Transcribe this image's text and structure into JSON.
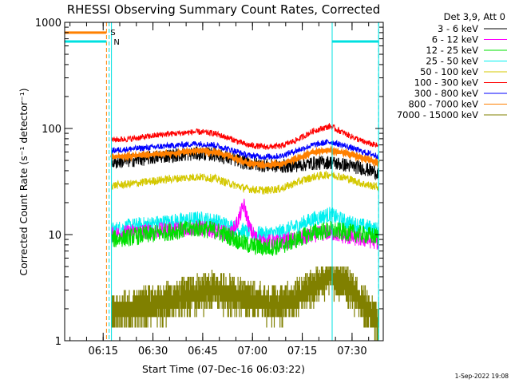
{
  "chart_data": {
    "type": "line",
    "title": "RHESSI Observing Summary Count Rates, Corrected",
    "ylabel": "Corrected Count Rate (s⁻¹ detector⁻¹)",
    "xlabel": "Start Time (07-Dec-16 06:03:22)",
    "yscale": "log",
    "ylim": [
      1,
      1000
    ],
    "xlim_minutes": [
      0,
      96
    ],
    "x_tick_labels": [
      "06:15",
      "06:30",
      "06:45",
      "07:00",
      "07:15",
      "07:30"
    ],
    "x_ticks_minutes": [
      11.6,
      26.6,
      41.6,
      56.6,
      71.6,
      86.6
    ],
    "y_tick_labels": [
      "1",
      "10",
      "100",
      "1000"
    ],
    "y_ticks": [
      1,
      10,
      100,
      1000
    ],
    "legend_title": "Det 3,9, Att 0",
    "legend_placement": "right, outside plot",
    "footer": "1-Sep-2022 19:08",
    "markers": {
      "s_label": "S",
      "n_label": "N",
      "s_color": "#ff8000",
      "n_color": "#00e0e0",
      "s_bar_y": 800,
      "n_bar_y": 660,
      "s_bar_x": [
        0,
        12.6
      ],
      "n_bar_x": [
        0,
        12.6
      ],
      "right_bar_x": [
        80.6,
        94.6
      ],
      "cyan_lines_x": [
        0,
        14.1,
        80.6,
        94.6
      ],
      "dashed_lines_x": [
        12.6,
        13.4,
        94.6
      ]
    },
    "data_start_minute": 14.1,
    "series": [
      {
        "name": "3 - 6 keV",
        "color": "#000000",
        "noise": 0.07,
        "x": [
          14.1,
          20,
          30,
          40,
          45,
          50,
          55,
          60,
          65,
          70,
          75,
          80,
          85,
          90,
          94.6
        ],
        "y": [
          48,
          50,
          55,
          58,
          57,
          52,
          47,
          45,
          44,
          45,
          47,
          48,
          45,
          42,
          38
        ]
      },
      {
        "name": "6 - 12 keV",
        "color": "#ff00ff",
        "noise": 0.08,
        "x": [
          14.1,
          20,
          30,
          40,
          45,
          50,
          52,
          54,
          56,
          58,
          60,
          65,
          70,
          75,
          80,
          85,
          90,
          94.6
        ],
        "y": [
          10,
          10.5,
          11,
          11.5,
          11,
          10,
          13,
          19,
          11,
          9,
          8.5,
          8.5,
          9,
          10,
          10.5,
          9.5,
          9,
          8.5
        ]
      },
      {
        "name": "12 - 25 keV",
        "color": "#00e000",
        "noise": 0.09,
        "x": [
          14.1,
          20,
          30,
          40,
          45,
          50,
          55,
          60,
          65,
          70,
          75,
          80,
          85,
          90,
          94.6
        ],
        "y": [
          9,
          9.5,
          10.5,
          11.5,
          11,
          9.5,
          8,
          7.5,
          7.8,
          9,
          10.5,
          11,
          10.5,
          10,
          9.5
        ]
      },
      {
        "name": "25 - 50 keV",
        "color": "#00f0f0",
        "noise": 0.08,
        "x": [
          14.1,
          20,
          30,
          40,
          45,
          50,
          55,
          60,
          65,
          70,
          75,
          80,
          85,
          90,
          94.6
        ],
        "y": [
          11,
          12,
          13,
          14,
          13.5,
          12,
          10.5,
          10,
          10.5,
          12,
          14,
          15.5,
          13,
          12,
          11
        ]
      },
      {
        "name": "50 - 100 keV",
        "color": "#d4c800",
        "noise": 0.04,
        "x": [
          14.1,
          20,
          30,
          40,
          45,
          50,
          55,
          60,
          65,
          70,
          75,
          80,
          85,
          90,
          94.6
        ],
        "y": [
          29,
          30,
          33,
          35,
          34,
          30,
          27,
          26,
          27,
          31,
          35,
          37,
          34,
          30,
          28
        ]
      },
      {
        "name": "100 - 300 keV",
        "color": "#ff0000",
        "noise": 0.03,
        "x": [
          14.1,
          20,
          30,
          40,
          45,
          50,
          55,
          60,
          65,
          70,
          75,
          80,
          85,
          90,
          94.6
        ],
        "y": [
          78,
          80,
          88,
          93,
          90,
          80,
          70,
          67,
          68,
          78,
          95,
          105,
          88,
          75,
          68
        ]
      },
      {
        "name": "300 - 800 keV",
        "color": "#0000ff",
        "noise": 0.03,
        "x": [
          14.1,
          20,
          30,
          40,
          45,
          50,
          55,
          60,
          65,
          70,
          75,
          80,
          85,
          90,
          94.6
        ],
        "y": [
          62,
          64,
          68,
          72,
          70,
          63,
          56,
          54,
          55,
          62,
          70,
          75,
          68,
          60,
          55
        ]
      },
      {
        "name": "800 - 7000 keV",
        "color": "#ff8000",
        "noise": 0.015,
        "x": [
          14.1,
          20,
          30,
          40,
          45,
          50,
          55,
          60,
          65,
          70,
          75,
          80,
          85,
          90,
          94.6
        ],
        "y": [
          54,
          55,
          58,
          62,
          60,
          54,
          47,
          45,
          46,
          52,
          60,
          63,
          58,
          52,
          48
        ]
      },
      {
        "name": "7000 - 15000 keV",
        "color": "#808000",
        "noise": 0,
        "x": [
          14.1,
          20,
          30,
          40,
          45,
          50,
          55,
          60,
          65,
          70,
          75,
          80,
          85,
          90,
          94.6
        ],
        "y": [
          1.8,
          2,
          2.3,
          2.8,
          3,
          2.8,
          2.5,
          2.3,
          2.2,
          2.5,
          3.2,
          4.2,
          3.5,
          2.3,
          1.5
        ]
      }
    ]
  }
}
